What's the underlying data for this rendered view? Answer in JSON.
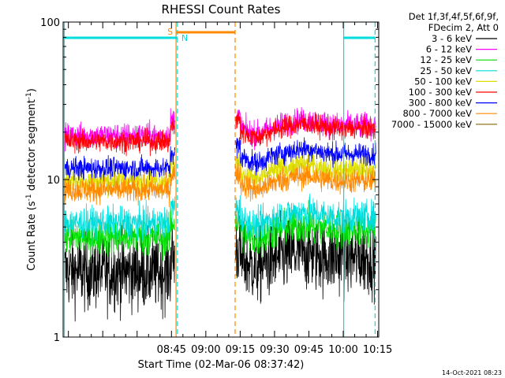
{
  "chart_data": {
    "type": "line",
    "title": "RHESSI Count Rates",
    "xlabel": "Start Time (02-Mar-06 08:37:42)",
    "ylabel_main": "Count Rate (s",
    "ylabel_sup": "-1",
    "ylabel_tail": " detector segment",
    "ylabel_sup2": "-1",
    "ylabel_close": ")",
    "footer": "14-Oct-2021 08:23",
    "x_range_minutes": [
      477.7,
      615.5
    ],
    "y_scale": "log",
    "ylim": [
      1,
      100
    ],
    "x_ticks": [
      {
        "label": "08:45",
        "minutes": 525
      },
      {
        "label": "09:00",
        "minutes": 540
      },
      {
        "label": "09:15",
        "minutes": 555
      },
      {
        "label": "09:30",
        "minutes": 570
      },
      {
        "label": "09:45",
        "minutes": 585
      },
      {
        "label": "10:00",
        "minutes": 600
      },
      {
        "label": "10:15",
        "minutes": 615
      }
    ],
    "y_ticks": [
      {
        "label": "1",
        "value": 1
      },
      {
        "label": "10",
        "value": 10
      },
      {
        "label": "100",
        "value": 100
      }
    ],
    "legend_header": [
      "Det 1f,3f,4f,5f,6f,9f,",
      "FDecim 2, Att 0"
    ],
    "series": [
      {
        "name": "3 - 6 keV",
        "color": "#000000"
      },
      {
        "name": "6 - 12 keV",
        "color": "#ff00ff"
      },
      {
        "name": "12 - 25 keV",
        "color": "#00dd00"
      },
      {
        "name": "25 - 50 keV",
        "color": "#00dddd"
      },
      {
        "name": "50 - 100 keV",
        "color": "#dddd00"
      },
      {
        "name": "100 - 300 keV",
        "color": "#ff0000"
      },
      {
        "name": "300 - 800 keV",
        "color": "#0000ff"
      },
      {
        "name": "800 - 7000 keV",
        "color": "#ff8800"
      },
      {
        "name": "7000 - 15000 keV",
        "color": "#886600"
      }
    ],
    "markers": {
      "s_label": "S",
      "n_label": "N",
      "night_color": "#00dddd",
      "saa_color": "#ff8800"
    }
  }
}
